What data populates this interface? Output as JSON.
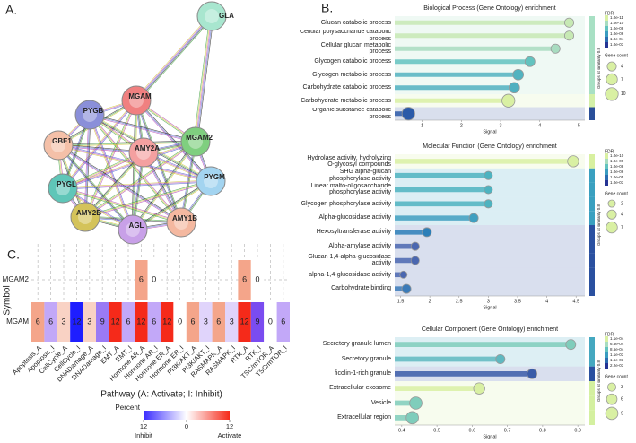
{
  "panel_labels": [
    "A.",
    "B.",
    "C."
  ],
  "network": {
    "nodes": [
      "GLA",
      "MGAM",
      "PYGB",
      "MGAM2",
      "GBE1",
      "AMY2A",
      "PYGM",
      "PYGL",
      "AMY2B",
      "AGL",
      "AMY1B"
    ]
  },
  "chart_data": [
    {
      "type": "lollipop",
      "title": "Biological Process (Gene Ontology) enrichment",
      "categories": [
        "Glucan catabolic process",
        "Cellular polysaccharide catabolic process",
        "Cellular glucan metabolic process",
        "Glycogen catabolic process",
        "Glycogen metabolic process",
        "Carbohydrate catabolic process",
        "Carbohydrate metabolic process",
        "Organic substance catabolic process"
      ],
      "values": [
        4.75,
        4.75,
        4.4,
        3.75,
        3.45,
        3.35,
        3.2,
        0.65
      ],
      "sizes": [
        4,
        4,
        4,
        5,
        6,
        6,
        10,
        10
      ],
      "colors": [
        "#c7e9b4",
        "#c7e9b4",
        "#a8dcc0",
        "#63c3bf",
        "#52b3c0",
        "#4fb0c0",
        "#d9f0a3",
        "#2b5aa8"
      ],
      "group_colors": [
        "#a8e0c4",
        "#a8e0c4",
        "#a8e0c4",
        "#a8e0c4",
        "#a8e0c4",
        "#a8e0c4",
        "#d4f0a8",
        "#2a4f9a"
      ],
      "xlim": [
        0.3,
        5.15
      ],
      "xticks": [
        1,
        2,
        3,
        4,
        5
      ],
      "xlabel": "Signal",
      "group_label": "Groups at similarity 0.8",
      "fdr_legend": {
        "title": "FDR",
        "labels": [
          "1.0e-11",
          "1.0e-10",
          "1.0e-08",
          "1.0e-06",
          "1.0e-04",
          "1.0e-03"
        ],
        "colors": [
          "#d9f0a3",
          "#a8dcc0",
          "#63c3bf",
          "#3a9cc0",
          "#2b6cb0",
          "#253494"
        ]
      },
      "size_legend": {
        "title": "Gene count",
        "values": [
          4,
          7,
          10
        ]
      }
    },
    {
      "type": "lollipop",
      "title": "Molecular Function (Gene Ontology) enrichment",
      "categories": [
        "Hydrolase activity, hydrolyzing O-glycosyl compounds",
        "SHG alpha-glucan phosphorylase activity",
        "Linear malto-oligosaccharide phosphorylase activity",
        "Glycogen phosphorylase activity",
        "Alpha-glucosidase activity",
        "Hexosyltransferase activity",
        "Alpha-amylase activity",
        "Glucan 1,4-alpha-glucosidase activity",
        "alpha-1,4-glucosidase activity",
        "Carbohydrate binding"
      ],
      "values": [
        4.45,
        3.0,
        3.0,
        3.0,
        2.75,
        1.95,
        1.75,
        1.75,
        1.55,
        1.6
      ],
      "sizes": [
        7,
        3,
        3,
        3,
        4,
        4,
        3,
        3,
        2,
        4
      ],
      "colors": [
        "#d9f0a3",
        "#4db3c0",
        "#4db3c0",
        "#4db3c0",
        "#3f9fc0",
        "#2c7fb8",
        "#4a67b0",
        "#4a67b0",
        "#4a67b0",
        "#3a7ab8"
      ],
      "group_colors": [
        "#d8f0a0",
        "#3aa0c0",
        "#3aa0c0",
        "#3aa0c0",
        "#3aa0c0",
        "#2a50a0",
        "#2a50a0",
        "#2a50a0",
        "#2a50a0",
        "#2a50a0"
      ],
      "xlim": [
        1.4,
        4.65
      ],
      "xticks": [
        1.5,
        2,
        2.5,
        3,
        3.5,
        4,
        4.5
      ],
      "xlabel": "Signal",
      "group_label": "Groups at similarity 0.8",
      "fdr_legend": {
        "title": "FDR",
        "labels": [
          "1.0e-10",
          "1.0e-09",
          "1.0e-08",
          "1.0e-06",
          "1.0e-05",
          "1.0e-03"
        ],
        "colors": [
          "#d9f0a3",
          "#a8dcc0",
          "#63c3bf",
          "#3a9cc0",
          "#2b6cb0",
          "#253494"
        ]
      },
      "size_legend": {
        "title": "Gene count",
        "values": [
          2,
          4,
          7
        ]
      }
    },
    {
      "type": "lollipop",
      "title": "Cellular Component (Gene Ontology) enrichment",
      "categories": [
        "Secretory granule lumen",
        "Secretory granule",
        "ficolin-1-rich granule",
        "Extracellular exosome",
        "Vesicle",
        "Extracellular region"
      ],
      "values": [
        0.88,
        0.68,
        0.77,
        0.62,
        0.44,
        0.43
      ],
      "sizes": [
        5,
        4,
        5,
        7,
        9,
        9
      ],
      "colors": [
        "#7fcdbb",
        "#5fb8c0",
        "#3a5ca8",
        "#d9f0a3",
        "#7fcdbb",
        "#7fcdbb"
      ],
      "group_colors": [
        "#45a8c0",
        "#45a8c0",
        "#2a50a0",
        "#d4f0a0",
        "#d4f0a0",
        "#d4f0a0"
      ],
      "xlim": [
        0.38,
        0.92
      ],
      "xticks": [
        0.4,
        0.5,
        0.6,
        0.7,
        0.8,
        0.9
      ],
      "xlabel": "Signal",
      "group_label": "Groups at similarity 0.8",
      "fdr_legend": {
        "title": "FDR",
        "labels": [
          "1.1e-04",
          "6.6e-04",
          "8.6e-04",
          "1.1e-03",
          "1.6e-03",
          "2.2e-03"
        ],
        "colors": [
          "#d9f0a3",
          "#a8dcc0",
          "#63c3bf",
          "#3a9cc0",
          "#2b6cb0",
          "#253494"
        ]
      },
      "size_legend": {
        "title": "Gene count",
        "values": [
          3,
          6,
          9
        ]
      }
    },
    {
      "type": "heatmap",
      "categories": [
        "Apoptosis_A",
        "Apoptosis_I",
        "CellCycle_A",
        "CellCycle_I",
        "DNADamage_A",
        "DNADamage_I",
        "EMT_A",
        "EMT_I",
        "Hormone AR_A",
        "Hormone AR_I",
        "Hormone ER_A",
        "Hormone ER_I",
        "PI3K/AKT_A",
        "PI3K/AKT_I",
        "RASMAPK_A",
        "RASMAPK_I",
        "RTK_A",
        "RTK_I",
        "TSC/mTOR_A",
        "TSC/mTOR_I"
      ],
      "rows": [
        "MGAM2",
        "MGAM"
      ],
      "values": [
        [
          null,
          null,
          null,
          null,
          null,
          null,
          null,
          null,
          6,
          0,
          null,
          null,
          null,
          null,
          null,
          null,
          6,
          0,
          null,
          null
        ],
        [
          6,
          6,
          3,
          12,
          3,
          9,
          12,
          6,
          12,
          6,
          12,
          0,
          6,
          3,
          6,
          3,
          12,
          9,
          0,
          6
        ]
      ],
      "colors": [
        [
          null,
          null,
          null,
          null,
          null,
          null,
          null,
          null,
          "#f4a58a",
          "#ffffff",
          null,
          null,
          null,
          null,
          null,
          null,
          "#f4a58a",
          "#ffffff",
          null,
          null
        ],
        [
          "#f4a58a",
          "#c2a8f8",
          "#f9d2c4",
          "#1e1eff",
          "#f9d2c4",
          "#9a7af5",
          "#f52a1a",
          "#c2a8f8",
          "#f52a1a",
          "#c2a8f8",
          "#f52a1a",
          "#ffffff",
          "#f4a58a",
          "#e0d4fb",
          "#f4a58a",
          "#e0d4fb",
          "#f52a1a",
          "#7a4cf0",
          "#ffffff",
          "#c2a8f8"
        ]
      ],
      "xlabel": "Pathway (A: Activate; I: Inhibit)",
      "ylabel": "Symbol",
      "colorbar": {
        "title": "Percent",
        "ticks": [
          {
            "value": -12,
            "label": "12"
          },
          0,
          12
        ],
        "colors": [
          "#3a2cff",
          "#ffffff",
          "#f52a1a"
        ],
        "end_labels": [
          "Inhibit",
          "Activate"
        ]
      }
    }
  ]
}
